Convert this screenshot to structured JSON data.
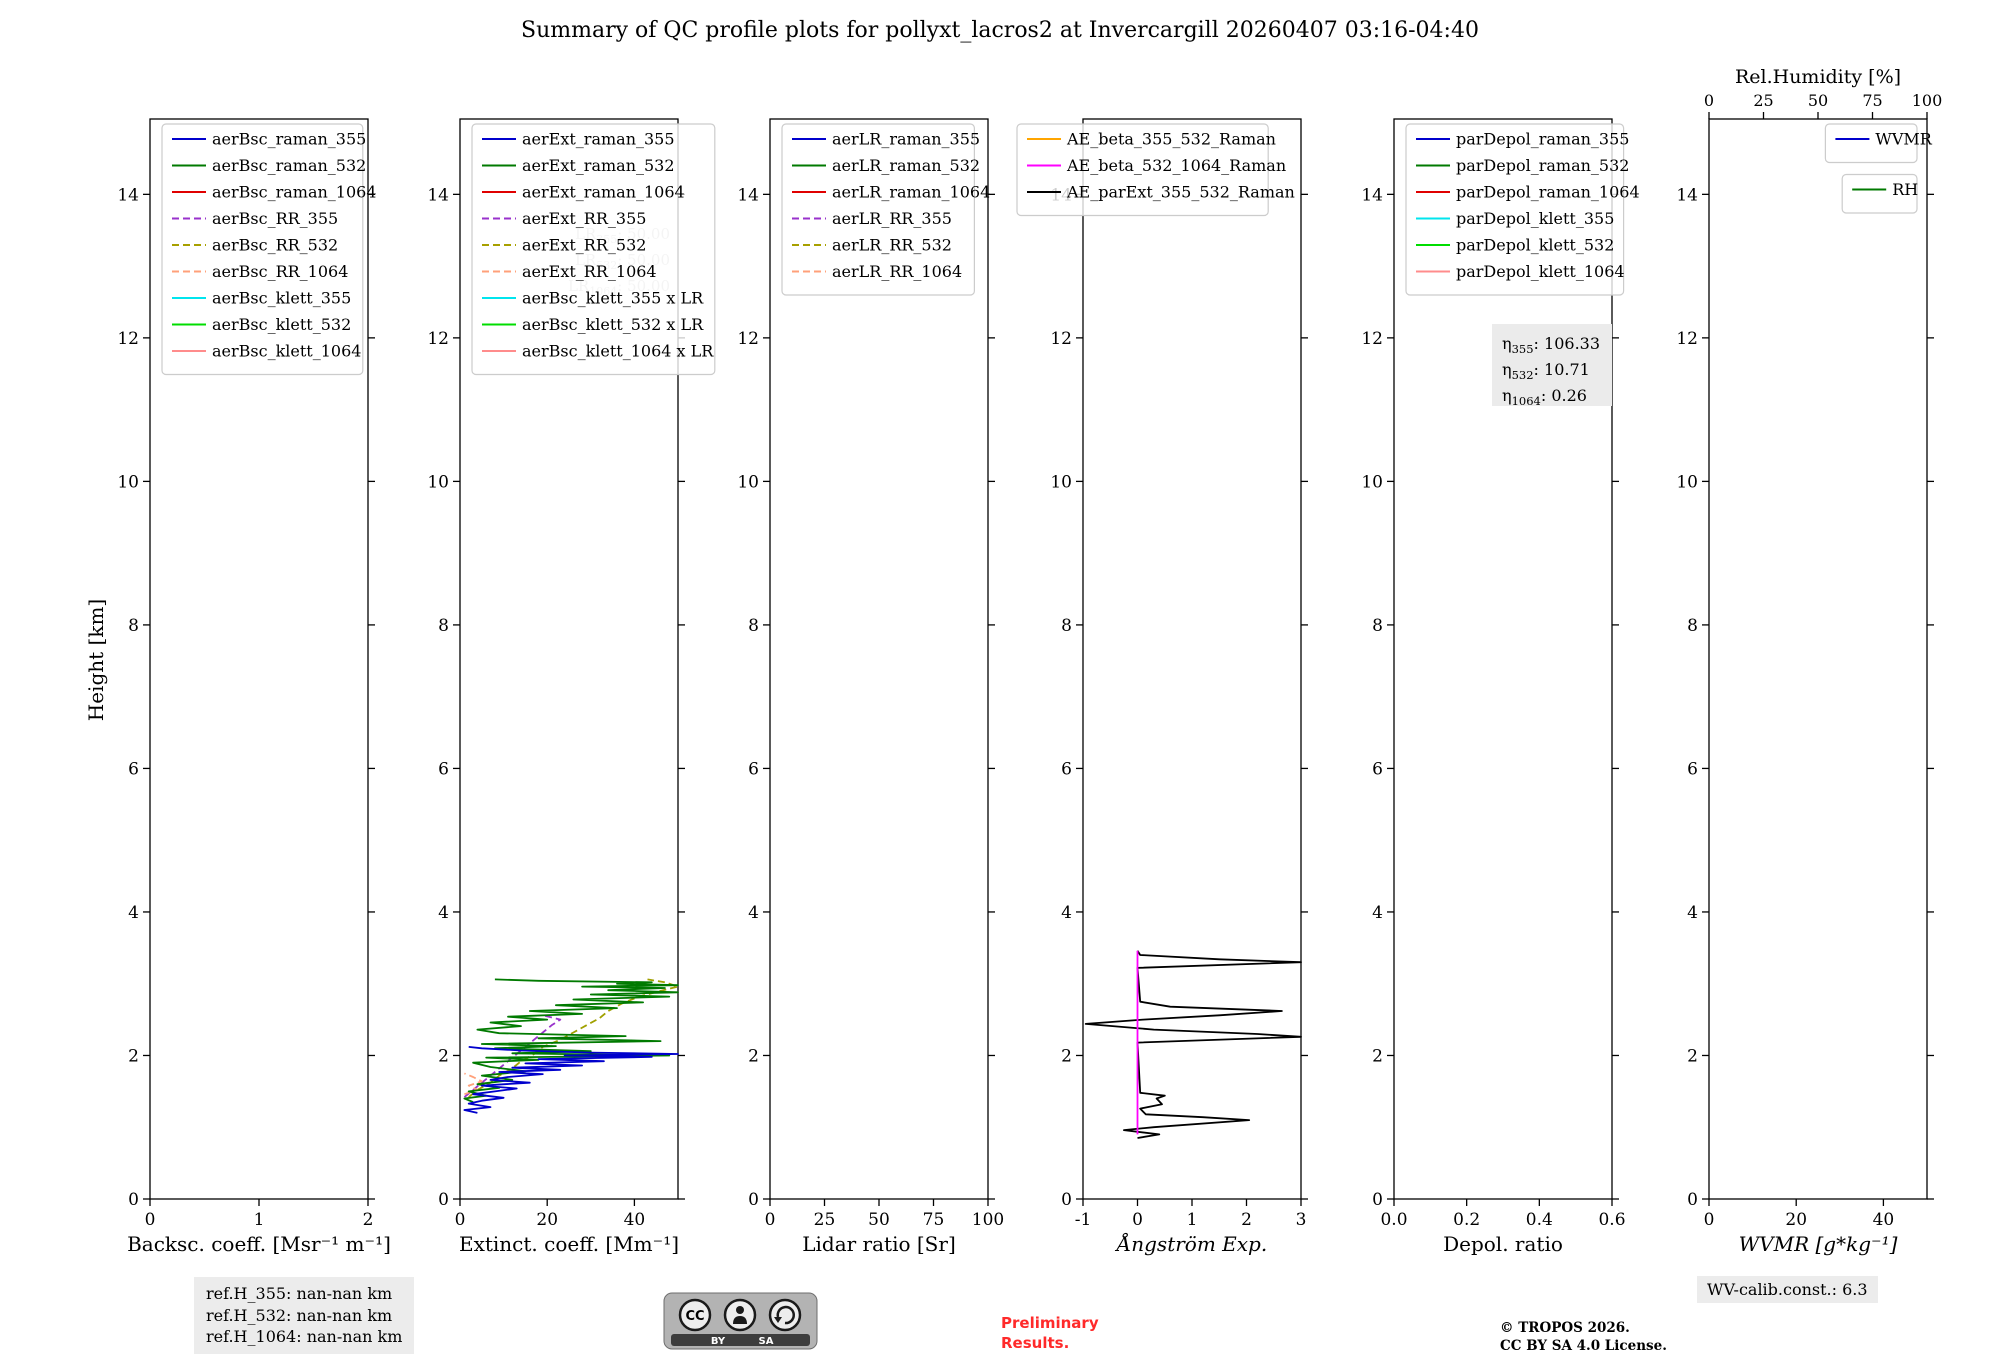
{
  "title": "Summary of QC profile plots for pollyxt_lacros2 at Invercargill 20260407 03:16-04:40",
  "ylabel": "Height [km]",
  "chart_data": [
    {
      "id": "backscatter",
      "type": "line",
      "xlabel": "Backsc. coeff. [Msr⁻¹ m⁻¹]",
      "xlim": [
        0,
        2
      ],
      "xticks": [
        {
          "v": 0,
          "label": "0"
        },
        {
          "v": 1,
          "label": "1"
        },
        {
          "v": 2,
          "label": "2"
        }
      ],
      "ylim": [
        0,
        15.05
      ],
      "yticks": [
        0,
        2,
        4,
        6,
        8,
        10,
        12,
        14
      ],
      "legend": [
        {
          "label": "aerBsc_raman_355",
          "color": "#0000cc",
          "dash": false
        },
        {
          "label": "aerBsc_raman_532",
          "color": "#007a00",
          "dash": false
        },
        {
          "label": "aerBsc_raman_1064",
          "color": "#e00000",
          "dash": false
        },
        {
          "label": "aerBsc_RR_355",
          "color": "#9932cc",
          "dash": true
        },
        {
          "label": "aerBsc_RR_532",
          "color": "#a8a000",
          "dash": true
        },
        {
          "label": "aerBsc_RR_1064",
          "color": "#ffa07a",
          "dash": true
        },
        {
          "label": "aerBsc_klett_355",
          "color": "#00e5ee",
          "dash": false
        },
        {
          "label": "aerBsc_klett_532",
          "color": "#00dd00",
          "dash": false
        },
        {
          "label": "aerBsc_klett_1064",
          "color": "#ff8c8c",
          "dash": false
        }
      ],
      "series": []
    },
    {
      "id": "extinction",
      "type": "line",
      "xlabel": "Extinct. coeff. [Mm⁻¹]",
      "xlim": [
        0,
        50
      ],
      "xticks": [
        {
          "v": 0,
          "label": "0"
        },
        {
          "v": 20,
          "label": "20"
        },
        {
          "v": 40,
          "label": "40"
        }
      ],
      "ylim": [
        0,
        15.05
      ],
      "yticks": [
        0,
        2,
        4,
        6,
        8,
        10,
        12,
        14
      ],
      "watermark": [
        {
          "sym": "LR",
          "sub": "355",
          "val": ": 50.00"
        },
        {
          "sym": "LR",
          "sub": "532",
          "val": ": 50.00"
        },
        {
          "sym": "LR",
          "sub": "1064",
          "val": ": 50.00"
        }
      ],
      "legend": [
        {
          "label": "aerExt_raman_355",
          "color": "#0000cc",
          "dash": false
        },
        {
          "label": "aerExt_raman_532",
          "color": "#007a00",
          "dash": false
        },
        {
          "label": "aerExt_raman_1064",
          "color": "#e00000",
          "dash": false
        },
        {
          "label": "aerExt_RR_355",
          "color": "#9932cc",
          "dash": true
        },
        {
          "label": "aerExt_RR_532",
          "color": "#a8a000",
          "dash": true
        },
        {
          "label": "aerExt_RR_1064",
          "color": "#ffa07a",
          "dash": true
        },
        {
          "label": "aerBsc_klett_355 x LR",
          "color": "#00e5ee",
          "dash": false
        },
        {
          "label": "aerBsc_klett_532 x LR",
          "color": "#00dd00",
          "dash": false
        },
        {
          "label": "aerBsc_klett_1064 x LR",
          "color": "#ff8c8c",
          "dash": false
        }
      ],
      "series": [
        {
          "name": "aerExt_RR_532",
          "color": "#a0a000",
          "dash": true,
          "points": [
            [
              2,
              1.42
            ],
            [
              4,
              1.52
            ],
            [
              7,
              1.62
            ],
            [
              9,
              1.72
            ],
            [
              12,
              1.82
            ],
            [
              14,
              1.92
            ],
            [
              17,
              2.02
            ],
            [
              19,
              2.12
            ],
            [
              23,
              2.22
            ],
            [
              26,
              2.32
            ],
            [
              29,
              2.42
            ],
            [
              32,
              2.52
            ],
            [
              34,
              2.62
            ],
            [
              37,
              2.72
            ],
            [
              41,
              2.82
            ],
            [
              46,
              2.9
            ],
            [
              50,
              2.96
            ],
            [
              47,
              3.02
            ],
            [
              43,
              3.06
            ]
          ]
        },
        {
          "name": "aerExt_RR_355",
          "color": "#9932cc",
          "dash": true,
          "points": [
            [
              1,
              1.42
            ],
            [
              3,
              1.52
            ],
            [
              5,
              1.62
            ],
            [
              7,
              1.72
            ],
            [
              9,
              1.82
            ],
            [
              11,
              1.92
            ],
            [
              13,
              2.02
            ],
            [
              15,
              2.12
            ],
            [
              17,
              2.22
            ],
            [
              19,
              2.32
            ],
            [
              21,
              2.42
            ],
            [
              23,
              2.5
            ],
            [
              19,
              2.56
            ]
          ]
        },
        {
          "name": "aerExt_RR_1064",
          "color": "#ffa07a",
          "dash": true,
          "points": [
            [
              1,
              1.46
            ],
            [
              4,
              1.52
            ],
            [
              2,
              1.58
            ],
            [
              5,
              1.64
            ],
            [
              3,
              1.7
            ],
            [
              1,
              1.75
            ]
          ]
        },
        {
          "name": "aerExt_raman_532",
          "color": "#007a00",
          "dash": false,
          "points": [
            [
              3,
              1.35
            ],
            [
              1,
              1.4
            ],
            [
              6,
              1.44
            ],
            [
              2,
              1.5
            ],
            [
              9,
              1.55
            ],
            [
              4,
              1.6
            ],
            [
              12,
              1.66
            ],
            [
              5,
              1.72
            ],
            [
              15,
              1.78
            ],
            [
              7,
              1.84
            ],
            [
              3,
              1.9
            ],
            [
              18,
              1.94
            ],
            [
              6,
              1.97
            ],
            [
              48,
              2.0
            ],
            [
              12,
              2.03
            ],
            [
              30,
              2.06
            ],
            [
              8,
              2.1
            ],
            [
              22,
              2.13
            ],
            [
              5,
              2.16
            ],
            [
              46,
              2.2
            ],
            [
              18,
              2.24
            ],
            [
              38,
              2.27
            ],
            [
              9,
              2.31
            ],
            [
              4,
              2.36
            ],
            [
              14,
              2.41
            ],
            [
              7,
              2.46
            ],
            [
              20,
              2.5
            ],
            [
              11,
              2.54
            ],
            [
              28,
              2.58
            ],
            [
              16,
              2.62
            ],
            [
              36,
              2.66
            ],
            [
              22,
              2.7
            ],
            [
              42,
              2.74
            ],
            [
              26,
              2.78
            ],
            [
              48,
              2.82
            ],
            [
              30,
              2.85
            ],
            [
              50,
              2.88
            ],
            [
              34,
              2.91
            ],
            [
              47,
              2.94
            ],
            [
              28,
              2.96
            ],
            [
              50,
              2.98
            ],
            [
              36,
              3.0
            ],
            [
              44,
              3.02
            ],
            [
              18,
              3.04
            ],
            [
              8,
              3.06
            ]
          ]
        },
        {
          "name": "aerExt_raman_355",
          "color": "#0000cc",
          "dash": false,
          "points": [
            [
              4,
              1.2
            ],
            [
              1,
              1.24
            ],
            [
              7,
              1.28
            ],
            [
              2,
              1.33
            ],
            [
              5,
              1.37
            ],
            [
              10,
              1.41
            ],
            [
              3,
              1.46
            ],
            [
              8,
              1.5
            ],
            [
              13,
              1.54
            ],
            [
              5,
              1.58
            ],
            [
              16,
              1.62
            ],
            [
              7,
              1.66
            ],
            [
              11,
              1.7
            ],
            [
              19,
              1.74
            ],
            [
              9,
              1.77
            ],
            [
              23,
              1.8
            ],
            [
              12,
              1.83
            ],
            [
              28,
              1.86
            ],
            [
              15,
              1.89
            ],
            [
              33,
              1.92
            ],
            [
              18,
              1.95
            ],
            [
              44,
              1.98
            ],
            [
              24,
              2.0
            ],
            [
              50,
              2.02
            ],
            [
              30,
              2.04
            ],
            [
              14,
              2.07
            ],
            [
              5,
              2.1
            ],
            [
              2,
              2.12
            ]
          ]
        }
      ]
    },
    {
      "id": "lidar-ratio",
      "type": "line",
      "xlabel": "Lidar ratio [Sr]",
      "xlim": [
        0,
        100
      ],
      "xticks": [
        {
          "v": 0,
          "label": "0"
        },
        {
          "v": 25,
          "label": "25"
        },
        {
          "v": 50,
          "label": "50"
        },
        {
          "v": 75,
          "label": "75"
        },
        {
          "v": 100,
          "label": "100"
        }
      ],
      "ylim": [
        0,
        15.05
      ],
      "yticks": [
        0,
        2,
        4,
        6,
        8,
        10,
        12,
        14
      ],
      "legend": [
        {
          "label": "aerLR_raman_355",
          "color": "#0000cc",
          "dash": false
        },
        {
          "label": "aerLR_raman_532",
          "color": "#007a00",
          "dash": false
        },
        {
          "label": "aerLR_raman_1064",
          "color": "#e00000",
          "dash": false
        },
        {
          "label": "aerLR_RR_355",
          "color": "#9932cc",
          "dash": true
        },
        {
          "label": "aerLR_RR_532",
          "color": "#a8a000",
          "dash": true
        },
        {
          "label": "aerLR_RR_1064",
          "color": "#ffa07a",
          "dash": true
        }
      ],
      "series": []
    },
    {
      "id": "angstroem-exp",
      "type": "line",
      "xlabel": "Ångström Exp.",
      "xlim": [
        -1,
        3
      ],
      "xticks": [
        {
          "v": -1,
          "label": "-1"
        },
        {
          "v": 0,
          "label": "0"
        },
        {
          "v": 1,
          "label": "1"
        },
        {
          "v": 2,
          "label": "2"
        },
        {
          "v": 3,
          "label": "3"
        }
      ],
      "ylim": [
        0,
        15.05
      ],
      "yticks": [
        0,
        2,
        4,
        6,
        8,
        10,
        12,
        14
      ],
      "legend": [
        {
          "label": "AE_beta_355_532_Raman",
          "color": "#ffa500",
          "dash": false
        },
        {
          "label": "AE_beta_532_1064_Raman",
          "color": "#ff00ff",
          "dash": false
        },
        {
          "label": "AE_parExt_355_532_Raman",
          "color": "#000000",
          "dash": false
        }
      ],
      "series": [
        {
          "name": "AE_parExt_355_532_Raman",
          "color": "#000000",
          "dash": false,
          "points": [
            [
              0.0,
              0.85
            ],
            [
              0.4,
              0.9
            ],
            [
              -0.25,
              0.96
            ],
            [
              0.3,
              1.0
            ],
            [
              2.05,
              1.1
            ],
            [
              1.2,
              1.14
            ],
            [
              0.15,
              1.18
            ],
            [
              0.05,
              1.26
            ],
            [
              0.45,
              1.32
            ],
            [
              0.35,
              1.4
            ],
            [
              0.5,
              1.44
            ],
            [
              0.05,
              1.48
            ],
            [
              0.0,
              2.18
            ],
            [
              3.0,
              2.26
            ],
            [
              2.2,
              2.3
            ],
            [
              0.3,
              2.36
            ],
            [
              -0.95,
              2.44
            ],
            [
              0.1,
              2.5
            ],
            [
              1.5,
              2.56
            ],
            [
              2.65,
              2.62
            ],
            [
              0.6,
              2.68
            ],
            [
              0.05,
              2.75
            ],
            [
              0.0,
              3.22
            ],
            [
              3.0,
              3.3
            ],
            [
              1.5,
              3.34
            ],
            [
              0.05,
              3.4
            ],
            [
              0.0,
              3.46
            ]
          ]
        },
        {
          "name": "AE_beta_532_1064_Raman",
          "color": "#ff00ff",
          "dash": false,
          "points": [
            [
              0,
              0.9
            ],
            [
              0,
              3.46
            ]
          ]
        },
        {
          "name": "AE_beta_355_532_Raman",
          "color": "#ffa500",
          "dash": false,
          "points": []
        }
      ]
    },
    {
      "id": "depol-ratio",
      "type": "line",
      "xlabel": "Depol. ratio",
      "xlim": [
        0,
        0.6
      ],
      "xticks": [
        {
          "v": 0,
          "label": "0.0"
        },
        {
          "v": 0.2,
          "label": "0.2"
        },
        {
          "v": 0.4,
          "label": "0.4"
        },
        {
          "v": 0.6,
          "label": "0.6"
        }
      ],
      "ylim": [
        0,
        15.05
      ],
      "yticks": [
        0,
        2,
        4,
        6,
        8,
        10,
        12,
        14
      ],
      "annotation": [
        {
          "sym": "η",
          "sub": "355",
          "val": ": 106.33"
        },
        {
          "sym": "η",
          "sub": "532",
          "val": ": 10.71"
        },
        {
          "sym": "η",
          "sub": "1064",
          "val": ": 0.26"
        }
      ],
      "legend": [
        {
          "label": "parDepol_raman_355",
          "color": "#0000cc",
          "dash": false
        },
        {
          "label": "parDepol_raman_532",
          "color": "#007a00",
          "dash": false
        },
        {
          "label": "parDepol_raman_1064",
          "color": "#e00000",
          "dash": false
        },
        {
          "label": "parDepol_klett_355",
          "color": "#00e5ee",
          "dash": false
        },
        {
          "label": "parDepol_klett_532",
          "color": "#00dd00",
          "dash": false
        },
        {
          "label": "parDepol_klett_1064",
          "color": "#ff8c8c",
          "dash": false
        }
      ],
      "series": []
    },
    {
      "id": "wvmr",
      "type": "line",
      "xlabel": "WVMR [g*kg⁻¹]",
      "xlim": [
        0,
        50
      ],
      "xticks": [
        {
          "v": 0,
          "label": "0"
        },
        {
          "v": 20,
          "label": "20"
        },
        {
          "v": 40,
          "label": "40"
        }
      ],
      "ylim": [
        0,
        15.05
      ],
      "yticks": [
        0,
        2,
        4,
        6,
        8,
        10,
        12,
        14
      ],
      "top_axis": {
        "label": "Rel.Humidity [%]",
        "lim": [
          0,
          100
        ],
        "ticks": [
          {
            "v": 0,
            "label": "0"
          },
          {
            "v": 25,
            "label": "25"
          },
          {
            "v": 50,
            "label": "50"
          },
          {
            "v": 75,
            "label": "75"
          },
          {
            "v": 100,
            "label": "100"
          }
        ]
      },
      "legend_groups": [
        [
          {
            "label": "WVMR",
            "color": "#0000cc",
            "dash": false
          }
        ],
        [
          {
            "label": "RH",
            "color": "#007a00",
            "dash": false
          }
        ]
      ],
      "series": []
    }
  ],
  "footer": {
    "ref_lines": [
      "ref.H_355: nan-nan km",
      "ref.H_532: nan-nan km",
      "ref.H_1064: nan-nan km"
    ],
    "preliminary_1": "Preliminary",
    "preliminary_2": "Results.",
    "copyright_1": "© TROPOS 2026.",
    "copyright_2": "CC BY SA 4.0 License.",
    "wv_calib": "WV-calib.const.: 6.3",
    "cc_label": "CC",
    "cc_by": "BY",
    "cc_sa": "SA"
  }
}
